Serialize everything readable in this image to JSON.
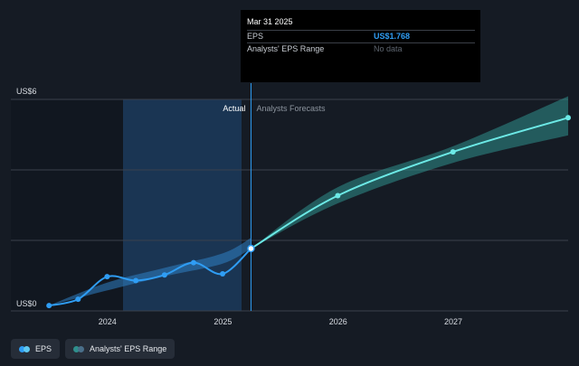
{
  "chart_data": {
    "type": "line",
    "y_axis_labels": {
      "top": "US$6",
      "bottom": "US$0"
    },
    "ylim": [
      0,
      6
    ],
    "xlim": [
      "2023-03-01",
      "2027-12-31"
    ],
    "x_tick_labels": [
      {
        "label": "2024",
        "date": "2024-01-01"
      },
      {
        "label": "2025",
        "date": "2025-01-01"
      },
      {
        "label": "2026",
        "date": "2026-01-01"
      },
      {
        "label": "2027",
        "date": "2027-01-01"
      }
    ],
    "grid": true,
    "regions": {
      "actual_label": "Actual",
      "forecast_label": "Analysts Forecasts",
      "divider_date": "2025-03-31"
    },
    "series": [
      {
        "name": "EPS",
        "color": "#2f9df4",
        "points": [
          {
            "date": "2023-06-30",
            "value": 0.15
          },
          {
            "date": "2023-09-30",
            "value": 0.33
          },
          {
            "date": "2023-12-31",
            "value": 0.97
          },
          {
            "date": "2024-03-31",
            "value": 0.86
          },
          {
            "date": "2024-06-30",
            "value": 1.02
          },
          {
            "date": "2024-09-30",
            "value": 1.37
          },
          {
            "date": "2024-12-31",
            "value": 1.05
          },
          {
            "date": "2025-03-31",
            "value": 1.768
          }
        ]
      },
      {
        "name": "Analysts EPS Forecast",
        "color": "#6ce9e6",
        "points": [
          {
            "date": "2025-03-31",
            "value": 1.768
          },
          {
            "date": "2025-12-31",
            "value": 3.27
          },
          {
            "date": "2026-12-31",
            "value": 4.51
          },
          {
            "date": "2027-12-31",
            "value": 5.48
          }
        ]
      }
    ],
    "bands": [
      {
        "name": "Analysts' EPS Range (past)",
        "color": "#2f7fc4",
        "upper": [
          {
            "date": "2023-06-30",
            "value": 0.15
          },
          {
            "date": "2023-12-31",
            "value": 0.8
          },
          {
            "date": "2024-06-30",
            "value": 1.22
          },
          {
            "date": "2024-12-31",
            "value": 1.63
          },
          {
            "date": "2025-03-31",
            "value": 2.07
          }
        ],
        "lower": [
          {
            "date": "2023-06-30",
            "value": 0.15
          },
          {
            "date": "2023-12-31",
            "value": 0.58
          },
          {
            "date": "2024-06-30",
            "value": 0.98
          },
          {
            "date": "2024-12-31",
            "value": 1.34
          },
          {
            "date": "2025-03-31",
            "value": 1.768
          }
        ]
      },
      {
        "name": "Analysts' EPS Range (forecast)",
        "color": "#2f8f8c",
        "upper": [
          {
            "date": "2025-03-31",
            "value": 1.768
          },
          {
            "date": "2025-12-31",
            "value": 3.51
          },
          {
            "date": "2026-12-31",
            "value": 4.67
          },
          {
            "date": "2027-12-31",
            "value": 6.09
          }
        ],
        "lower": [
          {
            "date": "2025-03-31",
            "value": 1.768
          },
          {
            "date": "2025-12-31",
            "value": 3.05
          },
          {
            "date": "2026-12-31",
            "value": 4.2
          },
          {
            "date": "2027-12-31",
            "value": 4.98
          }
        ]
      }
    ]
  },
  "tooltip": {
    "date": "Mar 31 2025",
    "rows": [
      {
        "label": "EPS",
        "value": "US$1.768",
        "color": "#2f9df4"
      },
      {
        "label": "Analysts' EPS Range",
        "value": "No data"
      }
    ]
  },
  "legend": {
    "items": [
      {
        "label": "EPS",
        "colors": [
          "#2f9df4",
          "#5fc8f0"
        ]
      },
      {
        "label": "Analysts' EPS Range",
        "colors": [
          "#2f8f8c",
          "#4a6f8a"
        ]
      }
    ]
  }
}
